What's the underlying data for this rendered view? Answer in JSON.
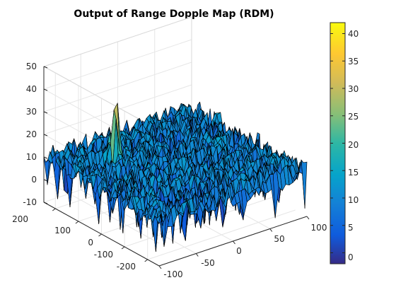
{
  "chart_data": {
    "type": "surface3d",
    "title": "Output of Range Dopple Map (RDM)",
    "xlabel": "",
    "ylabel": "",
    "zlabel": "",
    "x_axis": {
      "range": [
        -100,
        100
      ],
      "ticks": [
        "-100",
        "-50",
        "0",
        "50",
        "100"
      ]
    },
    "y_axis": {
      "range": [
        -250,
        250
      ],
      "ticks": [
        "200",
        "100",
        "0",
        "-100",
        "-200"
      ]
    },
    "z_axis": {
      "range": [
        -10,
        50
      ],
      "ticks": [
        "50",
        "40",
        "30",
        "20",
        "10",
        "0",
        "-10"
      ]
    },
    "colorbar": {
      "range": [
        -2,
        42
      ],
      "ticks": [
        "40",
        "35",
        "30",
        "25",
        "20",
        "15",
        "10",
        "5",
        "0"
      ],
      "colormap": "parula"
    },
    "noise_floor": {
      "mean": 10,
      "min": -8,
      "max": 23
    },
    "peak": {
      "x": -50,
      "y": 100,
      "z": 42
    },
    "grid": true,
    "edge_color": "#000000"
  }
}
